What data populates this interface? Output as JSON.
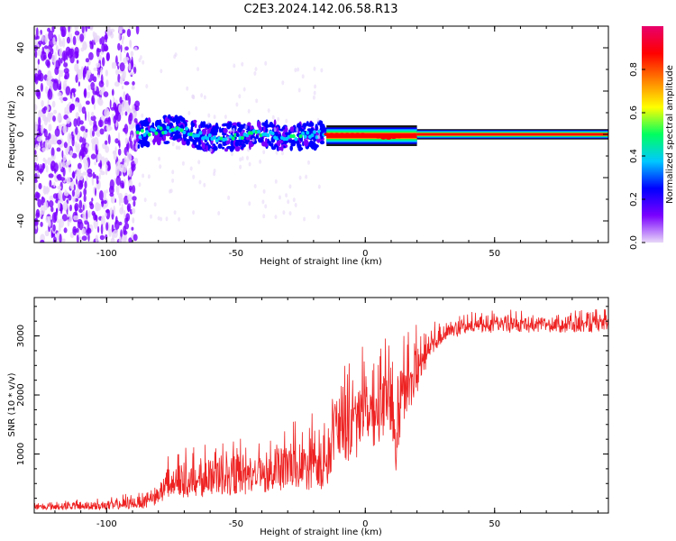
{
  "figure": {
    "title": "C2E3.2024.142.06.58.R13"
  },
  "chart_data": [
    {
      "type": "heatmap",
      "title": "C2E3.2024.142.06.58.R13",
      "xlabel": "Height of straight line (km)",
      "ylabel": "Frequency (Hz)",
      "xlim": [
        -128,
        94
      ],
      "ylim": [
        -50,
        50
      ],
      "x_ticks": [
        -100,
        -50,
        0,
        50
      ],
      "y_ticks": [
        -40,
        -20,
        0,
        20,
        40
      ],
      "colorbar": {
        "label": "Normalized spectral amplitude",
        "range": [
          0,
          1
        ],
        "ticks": [
          0.0,
          0.2,
          0.4,
          0.6,
          0.8
        ],
        "tick_labels": [
          "0.0",
          "0.2",
          "0.4",
          "0.6",
          "0.8"
        ],
        "colormap": [
          "#e8d8f8",
          "#7a00ff",
          "#0000ff",
          "#00c8ff",
          "#00ff60",
          "#ffff00",
          "#ff8000",
          "#ff0000",
          "#e8006c"
        ]
      },
      "regions": [
        {
          "x_range": [
            -128,
            -88
          ],
          "freq_spread": 50,
          "amplitude": 0.1,
          "description_level": "noise"
        },
        {
          "x_range": [
            -88,
            -15
          ],
          "freq_spread": 6,
          "amplitude": 0.35,
          "description_level": "mixed"
        },
        {
          "x_range": [
            -15,
            20
          ],
          "freq_spread": 2,
          "amplitude": 0.85,
          "description_level": "strong"
        },
        {
          "x_range": [
            20,
            94
          ],
          "freq_spread": 1,
          "amplitude": 0.95,
          "description_level": "strong"
        }
      ],
      "ridge_frequency": [
        {
          "x": -88,
          "y": 0
        },
        {
          "x": -80,
          "y": 2
        },
        {
          "x": -70,
          "y": 2
        },
        {
          "x": -60,
          "y": -2
        },
        {
          "x": -50,
          "y": -1
        },
        {
          "x": -40,
          "y": 1
        },
        {
          "x": -30,
          "y": -2
        },
        {
          "x": -20,
          "y": 0
        },
        {
          "x": -10,
          "y": 0
        },
        {
          "x": 0,
          "y": 0
        },
        {
          "x": 8,
          "y": -2
        },
        {
          "x": 20,
          "y": 0
        },
        {
          "x": 94,
          "y": 0
        }
      ]
    },
    {
      "type": "line",
      "xlabel": "Height of straight line (km)",
      "ylabel": "SNR (10 * v/v)",
      "xlim": [
        -128,
        94
      ],
      "ylim": [
        0,
        3650
      ],
      "x_ticks": [
        -100,
        -50,
        0,
        50
      ],
      "y_ticks": [
        1000,
        2000,
        3000
      ],
      "color": "#ee2222",
      "envelope": {
        "x": [
          -128,
          -100,
          -90,
          -85,
          -80,
          -75,
          -70,
          -60,
          -50,
          -40,
          -30,
          -20,
          -15,
          -12,
          -10,
          -5,
          0,
          5,
          10,
          12,
          15,
          20,
          25,
          30,
          40,
          50,
          60,
          70,
          80,
          94
        ],
        "low": [
          50,
          50,
          60,
          80,
          150,
          200,
          250,
          250,
          300,
          300,
          350,
          400,
          100,
          800,
          800,
          900,
          1000,
          1200,
          1300,
          600,
          1500,
          2000,
          2600,
          2900,
          3050,
          3050,
          3050,
          3050,
          3050,
          3050
        ],
        "high": [
          200,
          250,
          350,
          450,
          600,
          1100,
          1100,
          1200,
          1250,
          1300,
          1500,
          1700,
          1800,
          2500,
          2700,
          2900,
          2850,
          2900,
          3000,
          3000,
          3000,
          3200,
          3250,
          3300,
          3400,
          3450,
          3450,
          3450,
          3450,
          3450
        ]
      }
    }
  ]
}
